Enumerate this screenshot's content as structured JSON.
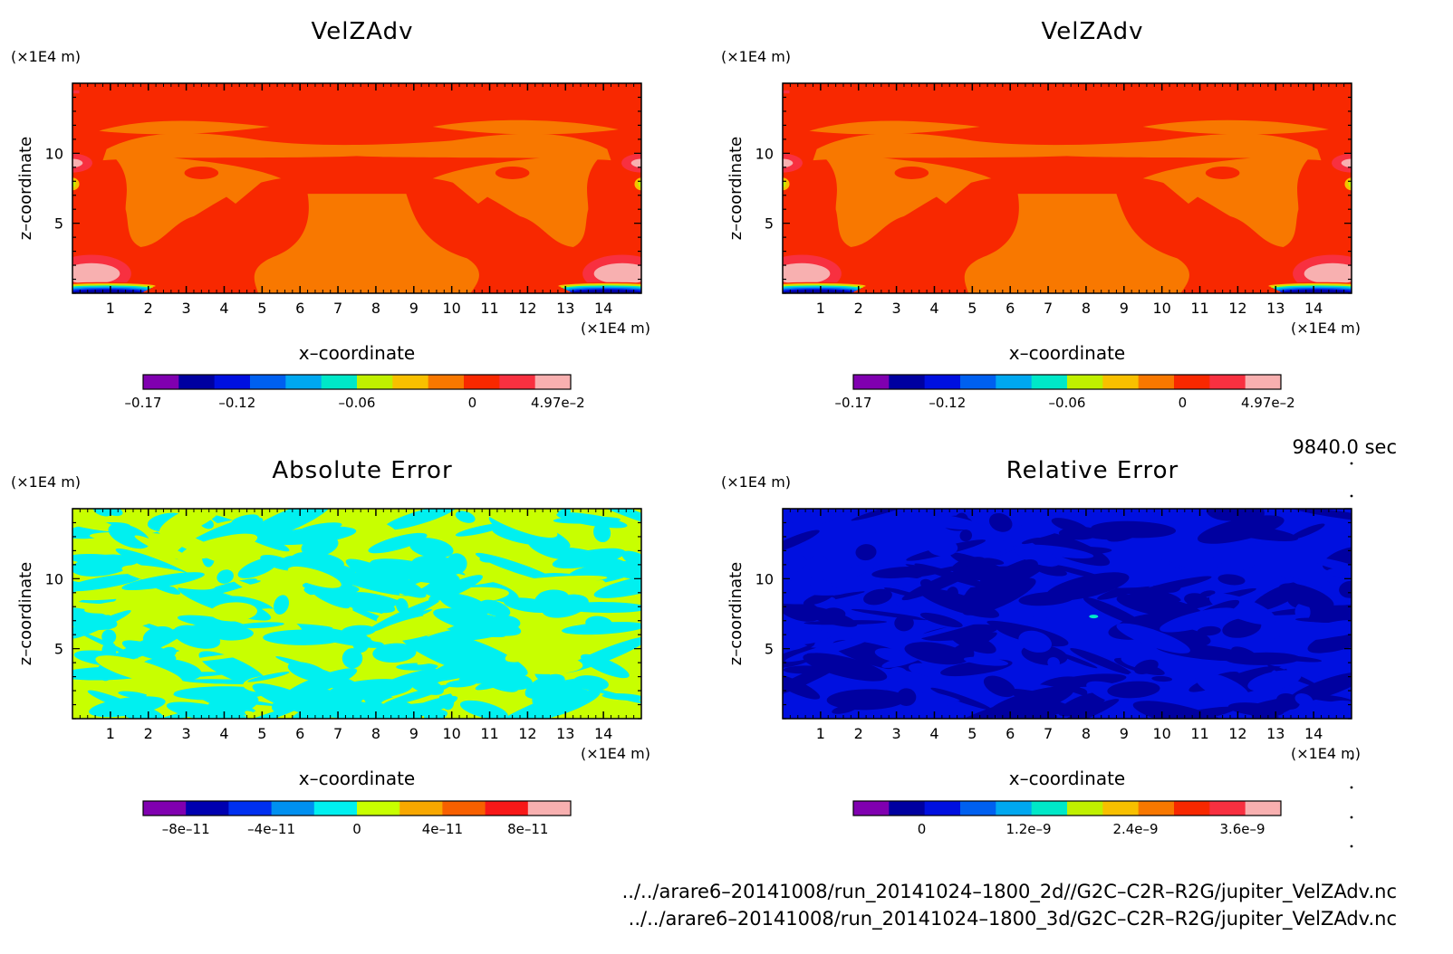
{
  "colors": {
    "velz": [
      "#8000b0",
      "#0000a0",
      "#0010e0",
      "#0060f0",
      "#00a8f0",
      "#00e8c8",
      "#c0f000",
      "#f8c000",
      "#f87800",
      "#f82800",
      "#f83040",
      "#f8b0b0"
    ],
    "abs_err": [
      "#8000b0",
      "#0000b0",
      "#0030f0",
      "#0090f0",
      "#00f0f0",
      "#c8ff00",
      "#f8a800",
      "#f86000",
      "#f81818",
      "#f8b0b0"
    ],
    "rel_err": [
      "#8000b0",
      "#0000a0",
      "#0010e0",
      "#0060f0",
      "#00a8f0",
      "#00e8c8",
      "#c0f000",
      "#f8c000",
      "#f87800",
      "#f82800",
      "#f83040",
      "#f8b0b0"
    ]
  },
  "panels": [
    {
      "title": "VelZAdv",
      "y_unit": "(×1E4 m)",
      "x_unit": "(×1E4 m)",
      "xlabel": "x–coordinate",
      "ylabel": "z–coordinate",
      "x_ticks": [
        "1",
        "2",
        "3",
        "4",
        "5",
        "6",
        "7",
        "8",
        "9",
        "10",
        "11",
        "12",
        "13",
        "14"
      ],
      "y_ticks": [
        "5",
        "10"
      ],
      "colorbar_labels": [
        "–0.17",
        "–0.12",
        "–0.06",
        "0",
        "4.97e–2"
      ]
    },
    {
      "title": "VelZAdv",
      "y_unit": "(×1E4 m)",
      "x_unit": "(×1E4 m)",
      "xlabel": "x–coordinate",
      "ylabel": "z–coordinate",
      "x_ticks": [
        "1",
        "2",
        "3",
        "4",
        "5",
        "6",
        "7",
        "8",
        "9",
        "10",
        "11",
        "12",
        "13",
        "14"
      ],
      "y_ticks": [
        "5",
        "10"
      ],
      "colorbar_labels": [
        "–0.17",
        "–0.12",
        "–0.06",
        "0",
        "4.97e–2"
      ]
    },
    {
      "title": "Absolute Error",
      "y_unit": "(×1E4 m)",
      "x_unit": "(×1E4 m)",
      "xlabel": "x–coordinate",
      "ylabel": "z–coordinate",
      "x_ticks": [
        "1",
        "2",
        "3",
        "4",
        "5",
        "6",
        "7",
        "8",
        "9",
        "10",
        "11",
        "12",
        "13",
        "14"
      ],
      "y_ticks": [
        "5",
        "10"
      ],
      "colorbar_labels": [
        "–8e–11",
        "–4e–11",
        "0",
        "4e–11",
        "8e–11"
      ]
    },
    {
      "title": "Relative Error",
      "y_unit": "(×1E4 m)",
      "x_unit": "(×1E4 m)",
      "xlabel": "x–coordinate",
      "ylabel": "z–coordinate",
      "x_ticks": [
        "1",
        "2",
        "3",
        "4",
        "5",
        "6",
        "7",
        "8",
        "9",
        "10",
        "11",
        "12",
        "13",
        "14"
      ],
      "y_ticks": [
        "5",
        "10"
      ],
      "colorbar_labels": [
        "0",
        "1.2e–9",
        "2.4e–9",
        "3.6e–9"
      ]
    }
  ],
  "time_label": "9840.0 sec",
  "footer_lines": [
    "../../arare6–20141008/run_20141024–1800_2d//G2C–C2R–R2G/jupiter_VelZAdv.nc",
    "../../arare6–20141008/run_20141024–1800_3d/G2C–C2R–R2G/jupiter_VelZAdv.nc"
  ],
  "chart_data": [
    {
      "type": "heatmap",
      "title": "VelZAdv",
      "xlabel": "x–coordinate",
      "ylabel": "z–coordinate",
      "xlim": [
        0,
        15
      ],
      "ylim": [
        0,
        15
      ],
      "colorbar_ticks": [
        -0.17,
        -0.12,
        -0.06,
        0,
        0.0497
      ],
      "dominant_values": "mostly 0 to 0.01 (red) with regions of -0.01 to 0 (orange); minimum near x=1 and x=14 at z≈0"
    },
    {
      "type": "heatmap",
      "title": "VelZAdv",
      "xlabel": "x–coordinate",
      "ylabel": "z–coordinate",
      "xlim": [
        0,
        15
      ],
      "ylim": [
        0,
        15
      ],
      "colorbar_ticks": [
        -0.17,
        -0.12,
        -0.06,
        0,
        0.0497
      ],
      "dominant_values": "identical pattern to left panel"
    },
    {
      "type": "heatmap",
      "title": "Absolute Error",
      "xlabel": "x–coordinate",
      "ylabel": "z–coordinate",
      "xlim": [
        0,
        15
      ],
      "ylim": [
        0,
        15
      ],
      "colorbar_ticks": [
        -8e-11,
        -4e-11,
        0,
        4e-11,
        8e-11
      ],
      "dominant_values": "values between -2e-11 and 2e-11 (cyan and yellow-green bands)"
    },
    {
      "type": "heatmap",
      "title": "Relative Error",
      "xlabel": "x–coordinate",
      "ylabel": "z–coordinate",
      "xlim": [
        0,
        15
      ],
      "ylim": [
        0,
        15
      ],
      "colorbar_ticks": [
        0,
        1.2e-09,
        2.4e-09,
        3.6e-09
      ],
      "dominant_values": "near 0 everywhere (dark blue / blue)"
    }
  ]
}
